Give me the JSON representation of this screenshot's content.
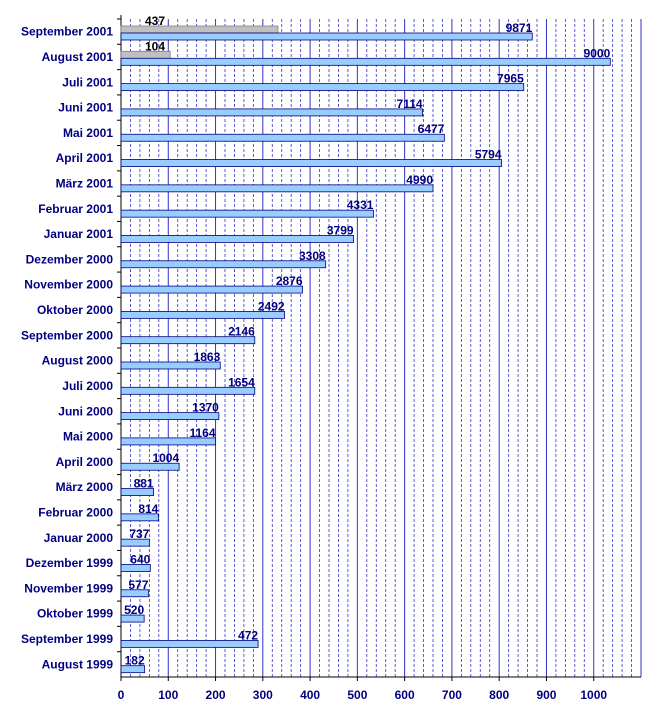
{
  "chart_data": {
    "type": "bar",
    "orientation": "horizontal",
    "categories": [
      "September 2001",
      "August 2001",
      "Juli 2001",
      "Juni 2001",
      "Mai 2001",
      "April 2001",
      "März 2001",
      "Februar 2001",
      "Januar 2001",
      "Dezember 2000",
      "November 2000",
      "Oktober 2000",
      "September 2000",
      "August 2000",
      "Juli 2000",
      "Juni 2000",
      "Mai 2000",
      "April 2000",
      "März 2000",
      "Februar 2000",
      "Januar 2000",
      "Dezember 1999",
      "November 1999",
      "Oktober 1999",
      "September 1999",
      "August 1999"
    ],
    "series": [
      {
        "color": "#99ccff",
        "values": [
          870,
          1035,
          852,
          638,
          684,
          805,
          660,
          534,
          492,
          433,
          384,
          346,
          283,
          210,
          283,
          207,
          200,
          123,
          69,
          79,
          60,
          62,
          58,
          49,
          290,
          50
        ],
        "labels": [
          "9871",
          "9000",
          "7965",
          "7114",
          "6477",
          "5794",
          "4990",
          "4331",
          "3799",
          "3308",
          "2876",
          "2492",
          "2146",
          "1863",
          "1654",
          "1370",
          "1164",
          "1004",
          "881",
          "814",
          "737",
          "640",
          "577",
          "520",
          "472",
          "182"
        ]
      },
      {
        "color": "#c0c0c0",
        "values": [
          332,
          104,
          null,
          null,
          null,
          null,
          null,
          null,
          null,
          null,
          null,
          null,
          null,
          null,
          null,
          null,
          null,
          null,
          null,
          null,
          null,
          null,
          null,
          null,
          null,
          null
        ],
        "labels": [
          "437",
          "104",
          "",
          "",
          "",
          "",
          "",
          "",
          "",
          "",
          "",
          "",
          "",
          "",
          "",
          "",
          "",
          "",
          "",
          "",
          "",
          "",
          "",
          "",
          "",
          ""
        ]
      }
    ],
    "xlim": [
      0,
      1100
    ],
    "xticks": [
      0,
      100,
      200,
      300,
      400,
      500,
      600,
      700,
      800,
      900,
      1000
    ],
    "title": "",
    "xlabel": "",
    "ylabel": "",
    "grid": "major solid, minor dashed",
    "grid_color": "#3333cc",
    "legend": "none"
  }
}
